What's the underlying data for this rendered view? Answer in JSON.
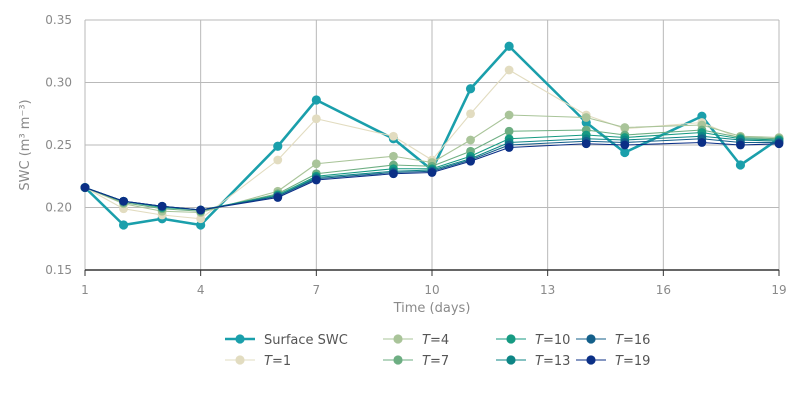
{
  "chart_data": {
    "type": "line",
    "xlabel": "Time (days)",
    "ylabel": "SWC (m³ m⁻³)",
    "xlim": [
      1,
      19
    ],
    "ylim": [
      0.15,
      0.35
    ],
    "x_ticks": [
      1,
      4,
      7,
      10,
      13,
      16,
      19
    ],
    "y_ticks": [
      0.15,
      0.2,
      0.25,
      0.3,
      0.35
    ],
    "y_tick_labels": [
      "0.15",
      "0.20",
      "0.25",
      "0.30",
      "0.35"
    ],
    "grid": true,
    "legend_position": "bottom",
    "x": [
      1,
      2,
      3,
      4,
      6,
      7,
      9,
      10,
      11,
      12,
      14,
      15,
      17,
      18,
      19
    ],
    "series": [
      {
        "name": "Surface SWC",
        "color": "#1a9fab",
        "emphasis": true,
        "values": [
          0.216,
          0.186,
          0.191,
          0.186,
          0.249,
          0.286,
          0.255,
          0.23,
          0.295,
          0.329,
          0.268,
          0.244,
          0.273,
          0.234,
          0.255
        ]
      },
      {
        "name": "T=1",
        "color": "#e2dcc0",
        "emphasis": false,
        "values": [
          0.216,
          0.199,
          0.194,
          0.191,
          0.238,
          0.271,
          0.257,
          0.238,
          0.275,
          0.31,
          0.274,
          0.263,
          0.268,
          0.255,
          0.254
        ]
      },
      {
        "name": "T=4",
        "color": "#a9c499",
        "emphasis": false,
        "values": [
          0.216,
          0.203,
          0.197,
          0.196,
          0.213,
          0.235,
          0.241,
          0.236,
          0.254,
          0.274,
          0.272,
          0.264,
          0.266,
          0.257,
          0.256
        ]
      },
      {
        "name": "T=7",
        "color": "#6dae82",
        "emphasis": false,
        "values": [
          0.216,
          0.204,
          0.199,
          0.197,
          0.211,
          0.227,
          0.234,
          0.233,
          0.245,
          0.261,
          0.262,
          0.258,
          0.262,
          0.256,
          0.255
        ]
      },
      {
        "name": "T=10",
        "color": "#169a82",
        "emphasis": false,
        "values": [
          0.216,
          0.205,
          0.2,
          0.198,
          0.21,
          0.225,
          0.231,
          0.231,
          0.241,
          0.255,
          0.258,
          0.256,
          0.26,
          0.255,
          0.254
        ]
      },
      {
        "name": "T=13",
        "color": "#0d8585",
        "emphasis": false,
        "values": [
          0.216,
          0.205,
          0.201,
          0.198,
          0.209,
          0.224,
          0.229,
          0.23,
          0.239,
          0.252,
          0.255,
          0.254,
          0.257,
          0.254,
          0.253
        ]
      },
      {
        "name": "T=16",
        "color": "#135f8a",
        "emphasis": false,
        "values": [
          0.216,
          0.205,
          0.201,
          0.198,
          0.209,
          0.223,
          0.228,
          0.229,
          0.238,
          0.25,
          0.253,
          0.252,
          0.255,
          0.252,
          0.252
        ]
      },
      {
        "name": "T=19",
        "color": "#0b2f86",
        "emphasis": false,
        "values": [
          0.216,
          0.205,
          0.201,
          0.198,
          0.208,
          0.222,
          0.227,
          0.228,
          0.237,
          0.248,
          0.251,
          0.25,
          0.252,
          0.25,
          0.251
        ]
      }
    ]
  }
}
